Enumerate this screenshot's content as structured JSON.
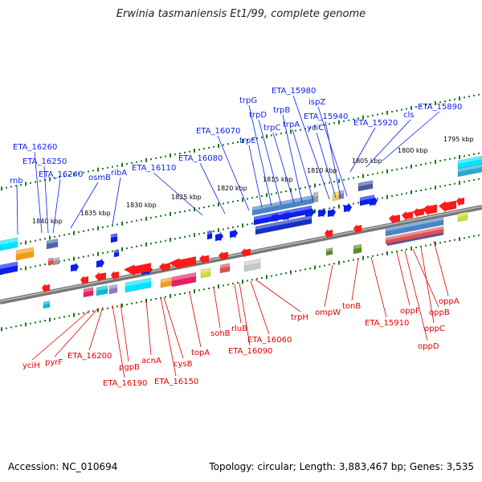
{
  "title": "Erwinia tasmaniensis Et1/99, complete genome",
  "footer": {
    "accession": "Accession: NC_010694",
    "topology": "Topology: circular; Length: 3,883,467 bp; Genes: 3,535"
  },
  "colors": {
    "forward_label": "#0a1ef0",
    "reverse_label": "#e00000",
    "dna": "#777777",
    "dots": "#1a7a1a"
  },
  "ticks": [
    "1840 kbp",
    "1835 kbp",
    "1830 kbp",
    "1825 kbp",
    "1820 kbp",
    "1815 kbp",
    "1810 kbp",
    "1805 kbp",
    "1800 kbp",
    "1795 kbp"
  ],
  "forward_genes": [
    "rnb",
    "ETA_16260",
    "ETA_16250",
    "ETA_16240",
    "osmB",
    "ribA",
    "ETA_16110",
    "ETA_16080",
    "ETA_16070",
    "trpE",
    "trpG",
    "trpD",
    "trpC",
    "trpB",
    "trpA",
    "ETA_15980",
    "yciC",
    "ETA_15940",
    "ispZ",
    "ETA_15920",
    "cls",
    "ETA_15890"
  ],
  "reverse_genes": [
    "yciH",
    "pyrF",
    "ETA_16200",
    "ETA_16190",
    "pgpB",
    "acnA",
    "ETA_16150",
    "cysB",
    "topA",
    "sohB",
    "rluB",
    "ETA_16090",
    "ETA_16060",
    "trpH",
    "ompW",
    "tonB",
    "ETA_15910",
    "oppF",
    "oppD",
    "oppB",
    "oppC",
    "oppA"
  ]
}
